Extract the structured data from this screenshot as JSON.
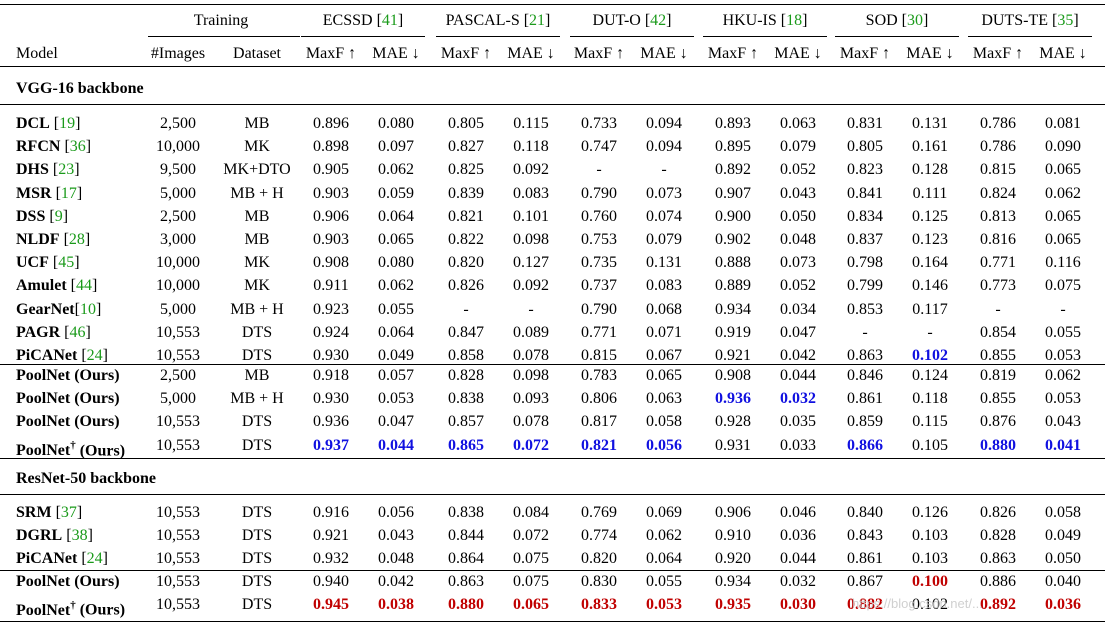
{
  "header": {
    "training_label": "Training",
    "model_label": "Model",
    "images_label": "#Images",
    "dataset_label": "Dataset",
    "metric_labels": [
      "MaxF ↑",
      "MAE ↓"
    ],
    "datasets": [
      {
        "name": "ECSSD",
        "ref": "41"
      },
      {
        "name": "PASCAL-S",
        "ref": "21"
      },
      {
        "name": "DUT-O",
        "ref": "42"
      },
      {
        "name": "HKU-IS",
        "ref": "18"
      },
      {
        "name": "SOD",
        "ref": "30"
      },
      {
        "name": "DUTS-TE",
        "ref": "35"
      }
    ]
  },
  "colors": {
    "citation": "#1a9a1a",
    "best_vgg": "#1010e0",
    "best_resnet": "#c00000"
  },
  "sections": [
    {
      "title": "VGG-16 backbone",
      "groups": [
        [
          {
            "name": "DCL",
            "ref": "19",
            "images": "2,500",
            "dataset": "MB",
            "values": [
              "0.896",
              "0.080",
              "0.805",
              "0.115",
              "0.733",
              "0.094",
              "0.893",
              "0.063",
              "0.831",
              "0.131",
              "0.786",
              "0.081"
            ],
            "hl": []
          },
          {
            "name": "RFCN",
            "ref": "36",
            "images": "10,000",
            "dataset": "MK",
            "values": [
              "0.898",
              "0.097",
              "0.827",
              "0.118",
              "0.747",
              "0.094",
              "0.895",
              "0.079",
              "0.805",
              "0.161",
              "0.786",
              "0.090"
            ],
            "hl": []
          },
          {
            "name": "DHS",
            "ref": "23",
            "images": "9,500",
            "dataset": "MK+DTO",
            "values": [
              "0.905",
              "0.062",
              "0.825",
              "0.092",
              "-",
              "-",
              "0.892",
              "0.052",
              "0.823",
              "0.128",
              "0.815",
              "0.065"
            ],
            "hl": []
          },
          {
            "name": "MSR",
            "ref": "17",
            "images": "5,000",
            "dataset": "MB + H",
            "values": [
              "0.903",
              "0.059",
              "0.839",
              "0.083",
              "0.790",
              "0.073",
              "0.907",
              "0.043",
              "0.841",
              "0.111",
              "0.824",
              "0.062"
            ],
            "hl": []
          },
          {
            "name": "DSS",
            "ref": "9",
            "images": "2,500",
            "dataset": "MB",
            "values": [
              "0.906",
              "0.064",
              "0.821",
              "0.101",
              "0.760",
              "0.074",
              "0.900",
              "0.050",
              "0.834",
              "0.125",
              "0.813",
              "0.065"
            ],
            "hl": []
          },
          {
            "name": "NLDF",
            "ref": "28",
            "images": "3,000",
            "dataset": "MB",
            "values": [
              "0.903",
              "0.065",
              "0.822",
              "0.098",
              "0.753",
              "0.079",
              "0.902",
              "0.048",
              "0.837",
              "0.123",
              "0.816",
              "0.065"
            ],
            "hl": []
          },
          {
            "name": "UCF",
            "ref": "45",
            "images": "10,000",
            "dataset": "MK",
            "values": [
              "0.908",
              "0.080",
              "0.820",
              "0.127",
              "0.735",
              "0.131",
              "0.888",
              "0.073",
              "0.798",
              "0.164",
              "0.771",
              "0.116"
            ],
            "hl": []
          },
          {
            "name": "Amulet",
            "ref": "44",
            "images": "10,000",
            "dataset": "MK",
            "values": [
              "0.911",
              "0.062",
              "0.826",
              "0.092",
              "0.737",
              "0.083",
              "0.889",
              "0.052",
              "0.799",
              "0.146",
              "0.773",
              "0.075"
            ],
            "hl": []
          },
          {
            "name": "GearNet",
            "ref": "10",
            "images": "5,000",
            "dataset": "MB + H",
            "values": [
              "0.923",
              "0.055",
              "-",
              "-",
              "0.790",
              "0.068",
              "0.934",
              "0.034",
              "0.853",
              "0.117",
              "-",
              "-"
            ],
            "hl": []
          },
          {
            "name": "PAGR",
            "ref": "46",
            "images": "10,553",
            "dataset": "DTS",
            "values": [
              "0.924",
              "0.064",
              "0.847",
              "0.089",
              "0.771",
              "0.071",
              "0.919",
              "0.047",
              "-",
              "-",
              "0.854",
              "0.055"
            ],
            "hl": []
          },
          {
            "name": "PiCANet",
            "ref": "24",
            "images": "10,553",
            "dataset": "DTS",
            "values": [
              "0.930",
              "0.049",
              "0.858",
              "0.078",
              "0.815",
              "0.067",
              "0.921",
              "0.042",
              "0.863",
              "0.102",
              "0.855",
              "0.053"
            ],
            "hl": [
              9
            ]
          }
        ],
        [
          {
            "name": "PoolNet (Ours)",
            "ref": "",
            "images": "2,500",
            "dataset": "MB",
            "values": [
              "0.918",
              "0.057",
              "0.828",
              "0.098",
              "0.783",
              "0.065",
              "0.908",
              "0.044",
              "0.846",
              "0.124",
              "0.819",
              "0.062"
            ],
            "hl": []
          },
          {
            "name": "PoolNet (Ours)",
            "ref": "",
            "images": "5,000",
            "dataset": "MB + H",
            "values": [
              "0.930",
              "0.053",
              "0.838",
              "0.093",
              "0.806",
              "0.063",
              "0.936",
              "0.032",
              "0.861",
              "0.118",
              "0.855",
              "0.053"
            ],
            "hl": [
              6,
              7
            ]
          },
          {
            "name": "PoolNet (Ours)",
            "ref": "",
            "images": "10,553",
            "dataset": "DTS",
            "values": [
              "0.936",
              "0.047",
              "0.857",
              "0.078",
              "0.817",
              "0.058",
              "0.928",
              "0.035",
              "0.859",
              "0.115",
              "0.876",
              "0.043"
            ],
            "hl": []
          },
          {
            "name": "PoolNet",
            "dagger": "†",
            "suffix": " (Ours)",
            "ref": "",
            "images": "10,553",
            "dataset": "DTS",
            "values": [
              "0.937",
              "0.044",
              "0.865",
              "0.072",
              "0.821",
              "0.056",
              "0.931",
              "0.033",
              "0.866",
              "0.105",
              "0.880",
              "0.041"
            ],
            "hl": [
              0,
              1,
              2,
              3,
              4,
              5,
              8,
              10,
              11
            ]
          }
        ]
      ]
    },
    {
      "title": "ResNet-50 backbone",
      "groups": [
        [
          {
            "name": "SRM",
            "ref": "37",
            "images": "10,553",
            "dataset": "DTS",
            "values": [
              "0.916",
              "0.056",
              "0.838",
              "0.084",
              "0.769",
              "0.069",
              "0.906",
              "0.046",
              "0.840",
              "0.126",
              "0.826",
              "0.058"
            ],
            "hl": []
          },
          {
            "name": "DGRL",
            "ref": "38",
            "images": "10,553",
            "dataset": "DTS",
            "values": [
              "0.921",
              "0.043",
              "0.844",
              "0.072",
              "0.774",
              "0.062",
              "0.910",
              "0.036",
              "0.843",
              "0.103",
              "0.828",
              "0.049"
            ],
            "hl": []
          },
          {
            "name": "PiCANet",
            "ref": "24",
            "images": "10,553",
            "dataset": "DTS",
            "values": [
              "0.932",
              "0.048",
              "0.864",
              "0.075",
              "0.820",
              "0.064",
              "0.920",
              "0.044",
              "0.861",
              "0.103",
              "0.863",
              "0.050"
            ],
            "hl": []
          }
        ],
        [
          {
            "name": "PoolNet (Ours)",
            "ref": "",
            "images": "10,553",
            "dataset": "DTS",
            "values": [
              "0.940",
              "0.042",
              "0.863",
              "0.075",
              "0.830",
              "0.055",
              "0.934",
              "0.032",
              "0.867",
              "0.100",
              "0.886",
              "0.040"
            ],
            "hl": [
              9
            ]
          },
          {
            "name": "PoolNet",
            "dagger": "†",
            "suffix": " (Ours)",
            "ref": "",
            "images": "10,553",
            "dataset": "DTS",
            "values": [
              "0.945",
              "0.038",
              "0.880",
              "0.065",
              "0.833",
              "0.053",
              "0.935",
              "0.030",
              "0.882",
              "0.102",
              "0.892",
              "0.036"
            ],
            "hl": [
              0,
              1,
              2,
              3,
              4,
              5,
              6,
              7,
              8,
              10,
              11
            ]
          }
        ]
      ]
    }
  ],
  "watermark": "https://blog.csdn.net/..."
}
